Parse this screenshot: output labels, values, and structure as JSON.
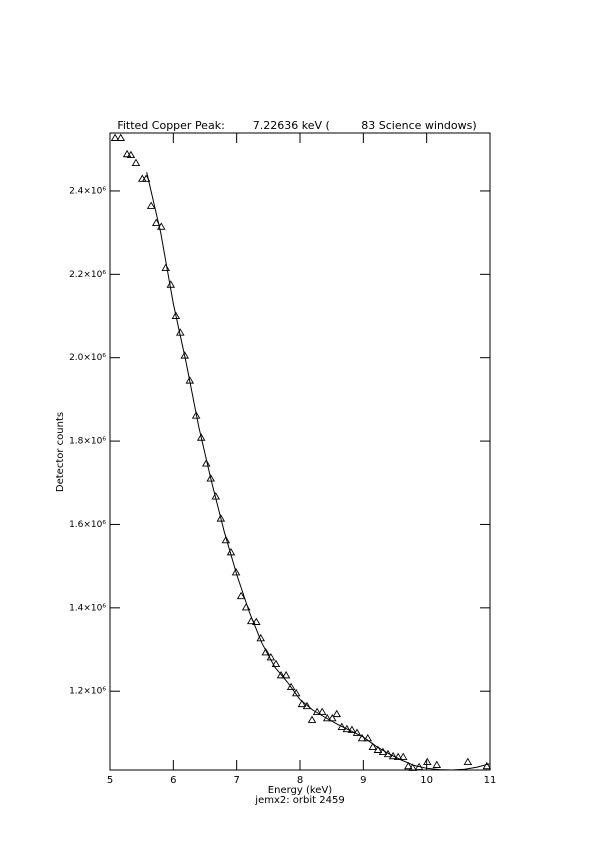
{
  "chart_data": {
    "type": "scatter",
    "title": "Fitted Copper Peak:        7.22636 keV (         83 Science windows)",
    "x_label": "Energy (keV)",
    "subtitle": "jemx2: orbit 2459",
    "y_label": "Detector counts",
    "xlim": [
      5,
      11
    ],
    "xticks": [
      5,
      6,
      7,
      8,
      9,
      10,
      11
    ],
    "ylim": [
      1011000,
      2539000
    ],
    "yticks": [
      {
        "value": 1200000,
        "label": "1.2×10⁶"
      },
      {
        "value": 1400000,
        "label": "1.4×10⁶"
      },
      {
        "value": 1600000,
        "label": "1.6×10⁶"
      },
      {
        "value": 1800000,
        "label": "1.8×10⁶"
      },
      {
        "value": 2000000,
        "label": "2.0×10⁶"
      },
      {
        "value": 2200000,
        "label": "2.2×10⁶"
      },
      {
        "value": 2400000,
        "label": "2.4×10⁶"
      }
    ],
    "grid": false,
    "series": [
      {
        "color": "#000000",
        "marker": "triangle",
        "line": false,
        "x": [
          5.08,
          5.17,
          5.27,
          5.33,
          5.41,
          5.51,
          5.57,
          5.65,
          5.73,
          5.81,
          5.88,
          5.96,
          6.04,
          6.11,
          6.18,
          6.26,
          6.36,
          6.44,
          6.52,
          6.59,
          6.67,
          6.75,
          6.83,
          6.91,
          6.99,
          7.07,
          7.15,
          7.23,
          7.31,
          7.38,
          7.46,
          7.54,
          7.62,
          7.7,
          7.78,
          7.86,
          7.94,
          8.03,
          8.11,
          8.19,
          8.27,
          8.35,
          8.43,
          8.51,
          8.58,
          8.66,
          8.74,
          8.82,
          8.9,
          8.98,
          9.07,
          9.15,
          9.23,
          9.31,
          9.39,
          9.47,
          9.55,
          9.63,
          9.71,
          9.78,
          9.88,
          10.01,
          10.16,
          10.65,
          10.95
        ],
        "values": [
          2527000,
          2527000,
          2488000,
          2486000,
          2467000,
          2429000,
          2429000,
          2364000,
          2323000,
          2314000,
          2215000,
          2175000,
          2100000,
          2060000,
          2005000,
          1945000,
          1861000,
          1808000,
          1746000,
          1710000,
          1667000,
          1614000,
          1562000,
          1533000,
          1485000,
          1428000,
          1401000,
          1368000,
          1366000,
          1327000,
          1293000,
          1281000,
          1265000,
          1238000,
          1238000,
          1210000,
          1195000,
          1169000,
          1164000,
          1131000,
          1150000,
          1150000,
          1135000,
          1135000,
          1145000,
          1114000,
          1109000,
          1107000,
          1100000,
          1087000,
          1087000,
          1066000,
          1059000,
          1054000,
          1049000,
          1044000,
          1042000,
          1042000,
          1020000,
          1016000,
          1018000,
          1030000,
          1023000,
          1030000,
          1020000
        ]
      },
      {
        "color": "#000000",
        "marker": "none",
        "line": true,
        "x": [
          5.58,
          5.8,
          6.0,
          6.2,
          6.4,
          6.6,
          6.8,
          7.0,
          7.2,
          7.4,
          7.6,
          7.8,
          8.0,
          8.2,
          8.4,
          8.6,
          8.8,
          9.0,
          9.2,
          9.4,
          9.6,
          9.8,
          10.0,
          10.2,
          10.4,
          10.6,
          10.8,
          11.0
        ],
        "values": [
          2445000,
          2300000,
          2130000,
          1990000,
          1835000,
          1705000,
          1585000,
          1480000,
          1390000,
          1315000,
          1258000,
          1222000,
          1180000,
          1155000,
          1137000,
          1120000,
          1105000,
          1090000,
          1068000,
          1050000,
          1035000,
          1022000,
          1015000,
          1012000,
          1011000,
          1013000,
          1018000,
          1026000
        ]
      }
    ]
  }
}
